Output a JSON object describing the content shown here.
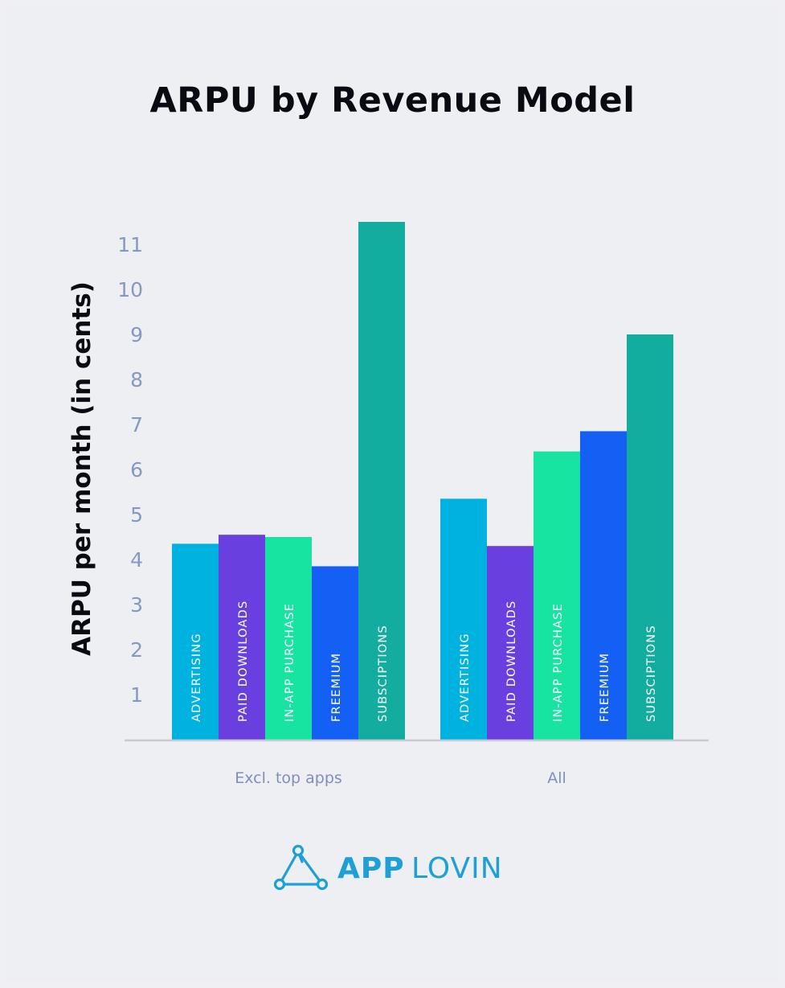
{
  "chart_data": {
    "type": "bar",
    "title": "ARPU by Revenue Model",
    "ylabel": "ARPU per month (in cents)",
    "xlabel": "",
    "ylim": [
      0,
      11.6
    ],
    "yticks": [
      1,
      2,
      3,
      4,
      5,
      6,
      7,
      8,
      9,
      10,
      11
    ],
    "grid": false,
    "categories": [
      "Excl. top apps",
      "All"
    ],
    "series": [
      {
        "name": "ADVERTISING",
        "color": "#00b2e0",
        "values": [
          4.35,
          5.35
        ]
      },
      {
        "name": "PAID DOWNLOADS",
        "color": "#6a3fe0",
        "values": [
          4.55,
          4.3
        ]
      },
      {
        "name": "IN-APP PURCHASE",
        "color": "#16e4a0",
        "values": [
          4.5,
          6.4
        ]
      },
      {
        "name": "FREEMIUM",
        "color": "#1560f4",
        "values": [
          3.85,
          6.85
        ]
      },
      {
        "name": "SUBSCIPTIONS",
        "color": "#12ad9f",
        "values": [
          11.5,
          9.0
        ]
      }
    ]
  },
  "brand": {
    "name_bold": "APP",
    "name_light": "LOVIN",
    "color": "#1e9fd6",
    "icon": "applovin-triangle-icon"
  },
  "colors": {
    "axis": "#c7c9d3",
    "tick_label": "#8598c4",
    "category_label": "#7f8ebd",
    "title": "#0a0a12"
  }
}
